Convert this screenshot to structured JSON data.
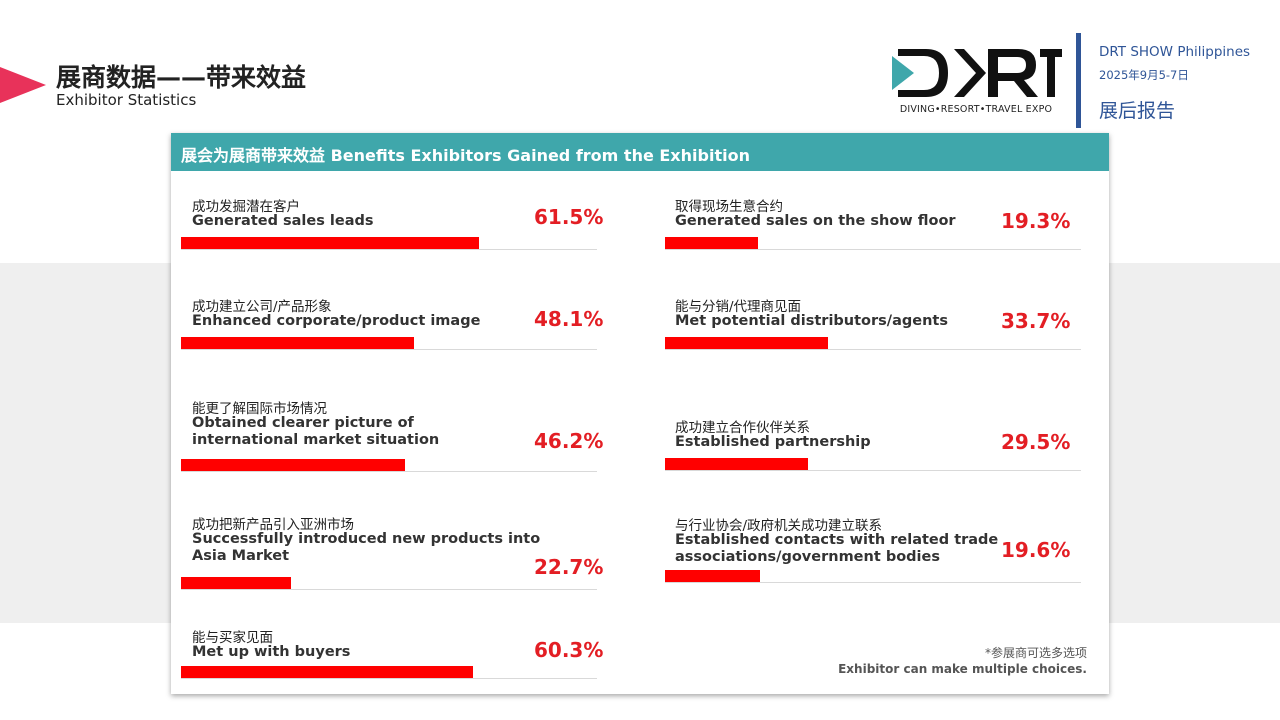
{
  "header": {
    "title": "展商数据——带来效益",
    "subtitle": "Exhibitor Statistics"
  },
  "logo": {
    "text": "DRT",
    "tagline": "DIVING•RESORT•TRAVEL EXPO",
    "accent_color": "#3fa7ab"
  },
  "event": {
    "name": "DRT SHOW Philippines",
    "date": "2025年9月5-7日",
    "report": "展后报告"
  },
  "card": {
    "title": "展会为展商带来效益 Benefits Exhibitors Gained from the Exhibition",
    "header_color": "#3fa7ab",
    "bar_color": "#ff0000"
  },
  "chart_data": {
    "type": "bar",
    "unit": "%",
    "left_column": [
      {
        "zh": "成功发掘潜在客户",
        "en": "Generated sales leads",
        "value": 61.5,
        "label": "61.5%"
      },
      {
        "zh": "成功建立公司/产品形象",
        "en": "Enhanced corporate/product image",
        "value": 48.1,
        "label": "48.1%"
      },
      {
        "zh": "能更了解国际市场情况",
        "en": "Obtained clearer picture of\ninternational market situation",
        "value": 46.2,
        "label": "46.2%"
      },
      {
        "zh": "成功把新产品引入亚洲市场",
        "en": "Successfully introduced new products into\nAsia Market",
        "value": 22.7,
        "label": "22.7%"
      },
      {
        "zh": "能与买家见面",
        "en": "Met up with buyers",
        "value": 60.3,
        "label": "60.3%"
      }
    ],
    "right_column": [
      {
        "zh": "取得现场生意合约",
        "en": "Generated sales on the show floor",
        "value": 19.3,
        "label": "19.3%"
      },
      {
        "zh": "能与分销/代理商见面",
        "en": "Met potential distributors/agents",
        "value": 33.7,
        "label": "33.7%"
      },
      {
        "zh": "成功建立合作伙伴关系",
        "en": "Established partnership",
        "value": 29.5,
        "label": "29.5%"
      },
      {
        "zh": "与行业协会/政府机关成功建立联系",
        "en": "Established contacts with related trade\nassociations/government bodies",
        "value": 19.6,
        "label": "19.6%"
      }
    ]
  },
  "footnote": {
    "zh": "*参展商可选多选项",
    "en": "Exhibitor can make multiple choices."
  }
}
